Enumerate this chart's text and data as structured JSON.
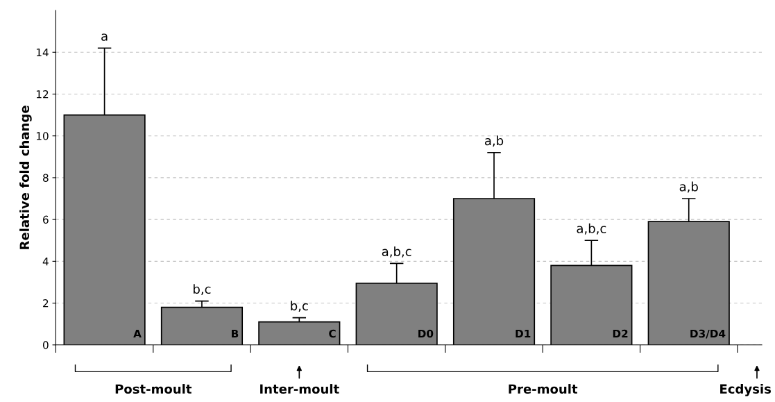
{
  "chart_data": {
    "type": "bar",
    "ylabel": "Relative fold change",
    "categories": [
      "A",
      "B",
      "C",
      "D0",
      "D1",
      "D2",
      "D3/D4"
    ],
    "values": [
      11.0,
      1.8,
      1.1,
      2.95,
      7.0,
      3.8,
      5.9
    ],
    "errors": [
      3.2,
      0.3,
      0.2,
      0.95,
      2.2,
      1.2,
      1.1
    ],
    "color": "#808080",
    "ylim": [
      0,
      16
    ],
    "yticks": [
      0,
      2,
      4,
      6,
      8,
      10,
      12,
      14
    ],
    "grid": "y",
    "annotations": [
      "a",
      "b,c",
      "b,c",
      "a,b,c",
      "a,b",
      "a,b,c",
      "a,b",
      "Post-moult",
      "Inter-moult",
      "Pre-moult",
      "Ecdysis"
    ]
  }
}
